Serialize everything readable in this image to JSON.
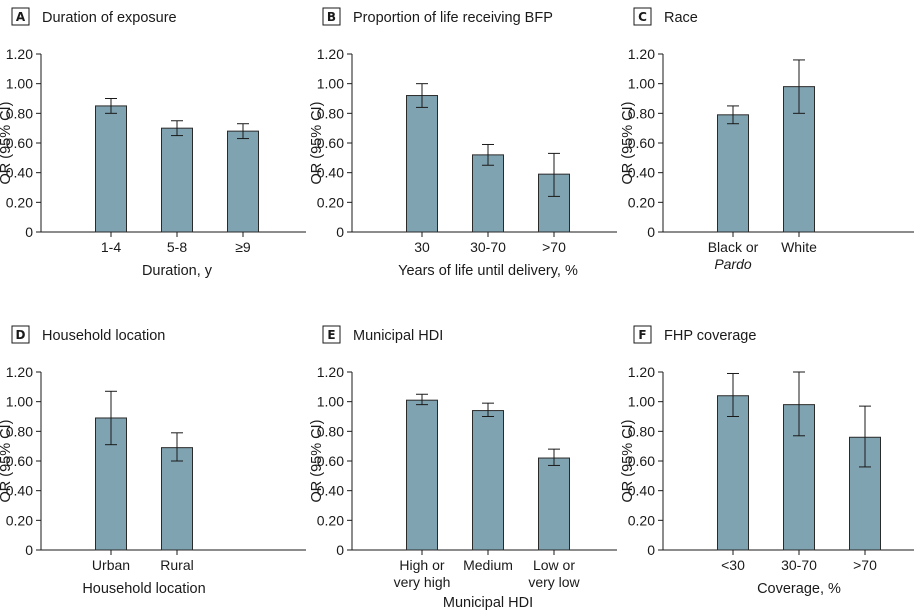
{
  "chart_data": [
    {
      "type": "bar",
      "panel_letter": "A",
      "title": "Duration of exposure",
      "ylabel": "OR (95% CI)",
      "xlabel": "Duration, y",
      "categories": [
        [
          "1-4"
        ],
        [
          "5-8"
        ],
        [
          "≥9"
        ]
      ],
      "values": [
        0.85,
        0.7,
        0.68
      ],
      "ci_low": [
        0.8,
        0.65,
        0.63
      ],
      "ci_high": [
        0.9,
        0.75,
        0.73
      ],
      "ylim": [
        0,
        1.2
      ],
      "yticks": [
        "0",
        "0.20",
        "0.40",
        "0.60",
        "0.80",
        "1.00",
        "1.20"
      ],
      "bar_color": "#7fa3b1",
      "grid": false
    },
    {
      "type": "bar",
      "panel_letter": "B",
      "title": "Proportion of life receiving BFP",
      "ylabel": "OR (95% CI)",
      "xlabel": "Years of life until delivery, %",
      "categories": [
        [
          "30"
        ],
        [
          "30-70"
        ],
        [
          ">70"
        ]
      ],
      "values": [
        0.92,
        0.52,
        0.39
      ],
      "ci_low": [
        0.84,
        0.45,
        0.24
      ],
      "ci_high": [
        1.0,
        0.59,
        0.53
      ],
      "ylim": [
        0,
        1.2
      ],
      "yticks": [
        "0",
        "0.20",
        "0.40",
        "0.60",
        "0.80",
        "1.00",
        "1.20"
      ],
      "bar_color": "#7fa3b1",
      "grid": false
    },
    {
      "type": "bar",
      "panel_letter": "C",
      "title": "Race",
      "ylabel": "OR (95% CI)",
      "xlabel": "",
      "categories": [
        [
          "Black or",
          "Pardo"
        ],
        [
          "White"
        ]
      ],
      "italic_second_line": [
        true,
        false
      ],
      "values": [
        0.79,
        0.98
      ],
      "ci_low": [
        0.73,
        0.8
      ],
      "ci_high": [
        0.85,
        1.16
      ],
      "ylim": [
        0,
        1.2
      ],
      "yticks": [
        "0",
        "0.20",
        "0.40",
        "0.60",
        "0.80",
        "1.00",
        "1.20"
      ],
      "bar_color": "#7fa3b1",
      "grid": false
    },
    {
      "type": "bar",
      "panel_letter": "D",
      "title": "Household location",
      "ylabel": "OR (95% CI)",
      "xlabel": "Household location",
      "categories": [
        [
          "Urban"
        ],
        [
          "Rural"
        ]
      ],
      "values": [
        0.89,
        0.69
      ],
      "ci_low": [
        0.71,
        0.6
      ],
      "ci_high": [
        1.07,
        0.79
      ],
      "ylim": [
        0,
        1.2
      ],
      "yticks": [
        "0",
        "0.20",
        "0.40",
        "0.60",
        "0.80",
        "1.00",
        "1.20"
      ],
      "bar_color": "#7fa3b1",
      "grid": false
    },
    {
      "type": "bar",
      "panel_letter": "E",
      "title": "Municipal HDI",
      "ylabel": "OR (95% CI)",
      "xlabel": "Municipal HDI",
      "categories": [
        [
          "High or",
          "very high"
        ],
        [
          "Medium"
        ],
        [
          "Low or",
          "very low"
        ]
      ],
      "values": [
        1.01,
        0.94,
        0.62
      ],
      "ci_low": [
        0.98,
        0.9,
        0.57
      ],
      "ci_high": [
        1.05,
        0.99,
        0.68
      ],
      "ylim": [
        0,
        1.2
      ],
      "yticks": [
        "0",
        "0.20",
        "0.40",
        "0.60",
        "0.80",
        "1.00",
        "1.20"
      ],
      "bar_color": "#7fa3b1",
      "grid": false
    },
    {
      "type": "bar",
      "panel_letter": "F",
      "title": "FHP coverage",
      "ylabel": "OR (95% CI)",
      "xlabel": "Coverage, %",
      "categories": [
        [
          "<30"
        ],
        [
          "30-70"
        ],
        [
          ">70"
        ]
      ],
      "values": [
        1.04,
        0.98,
        0.76
      ],
      "ci_low": [
        0.9,
        0.77,
        0.56
      ],
      "ci_high": [
        1.19,
        1.2,
        0.97
      ],
      "ylim": [
        0,
        1.2
      ],
      "yticks": [
        "0",
        "0.20",
        "0.40",
        "0.60",
        "0.80",
        "1.00",
        "1.20"
      ],
      "bar_color": "#7fa3b1",
      "grid": false
    }
  ]
}
